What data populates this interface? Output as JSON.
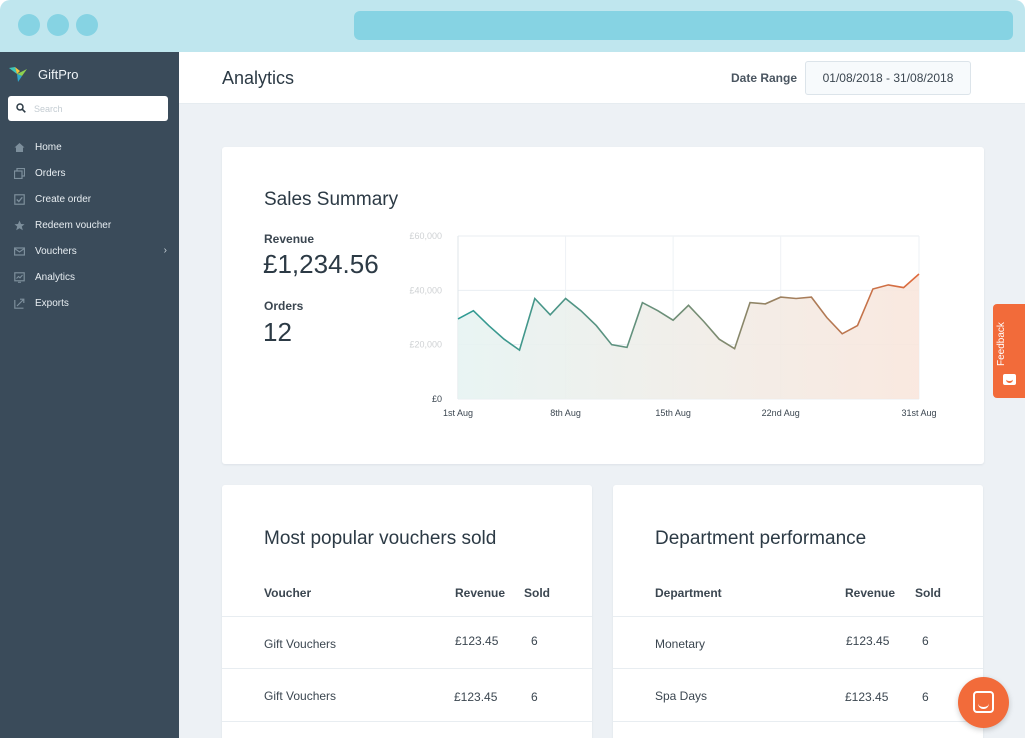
{
  "app": {
    "name": "GiftPro"
  },
  "search": {
    "placeholder": "Search"
  },
  "sidebar": {
    "items": [
      {
        "label": "Home",
        "icon": "home-icon"
      },
      {
        "label": "Orders",
        "icon": "orders-icon"
      },
      {
        "label": "Create order",
        "icon": "checkbox-icon"
      },
      {
        "label": "Redeem voucher",
        "icon": "star-icon"
      },
      {
        "label": "Vouchers",
        "icon": "envelope-icon",
        "has_submenu": true
      },
      {
        "label": "Analytics",
        "icon": "analytics-icon"
      },
      {
        "label": "Exports",
        "icon": "exports-icon"
      }
    ]
  },
  "header": {
    "title": "Analytics",
    "date_range_label": "Date Range",
    "date_range_value": "01/08/2018 - 31/08/2018"
  },
  "summary": {
    "title": "Sales Summary",
    "revenue_label": "Revenue",
    "revenue_value": "£1,234.56",
    "orders_label": "Orders",
    "orders_value": "12"
  },
  "chart_data": {
    "type": "area",
    "title": "",
    "xlabel": "",
    "ylabel": "",
    "yticks": [
      "£0",
      "£20,000",
      "£40,000",
      "£60,000"
    ],
    "ylim": [
      0,
      60000
    ],
    "xlim": [
      1,
      31
    ],
    "xticks": [
      {
        "day": 1,
        "label": "1st Aug"
      },
      {
        "day": 8,
        "label": "8th Aug"
      },
      {
        "day": 15,
        "label": "15th Aug"
      },
      {
        "day": 22,
        "label": "22nd Aug"
      },
      {
        "day": 31,
        "label": "31st Aug"
      }
    ],
    "grid": true,
    "x": [
      1,
      2,
      3,
      4,
      5,
      6,
      7,
      8,
      9,
      10,
      11,
      12,
      13,
      14,
      15,
      16,
      17,
      18,
      19,
      20,
      21,
      22,
      23,
      24,
      25,
      26,
      27,
      28,
      29,
      30,
      31
    ],
    "values": [
      29500,
      32500,
      27000,
      22000,
      18000,
      37000,
      31000,
      37000,
      32500,
      27000,
      20000,
      19000,
      35500,
      32500,
      29000,
      34500,
      28500,
      22000,
      18500,
      35500,
      35000,
      37500,
      37000,
      37500,
      30000,
      24000,
      27000,
      40500,
      42000,
      41000,
      46000
    ],
    "colors": {
      "start": "#2e9b94",
      "end": "#e06a3c"
    }
  },
  "vouchers_table": {
    "title": "Most popular vouchers sold",
    "columns": [
      "Voucher",
      "Revenue",
      "Sold"
    ],
    "rows": [
      {
        "name": "Gift Vouchers",
        "revenue": "£123.45",
        "sold": "6"
      },
      {
        "name": "Gift Vouchers",
        "revenue": "£123.45",
        "sold": "6"
      }
    ]
  },
  "department_table": {
    "title": "Department performance",
    "columns": [
      "Department",
      "Revenue",
      "Sold"
    ],
    "rows": [
      {
        "name": "Monetary",
        "revenue": "£123.45",
        "sold": "6"
      },
      {
        "name": "Spa Days",
        "revenue": "£123.45",
        "sold": "6"
      }
    ]
  },
  "feedback": {
    "label": "Feedback"
  },
  "colors": {
    "sidebar": "#3a4b5a",
    "accent": "#f26b3a",
    "chrome": "#bfe6ee"
  }
}
